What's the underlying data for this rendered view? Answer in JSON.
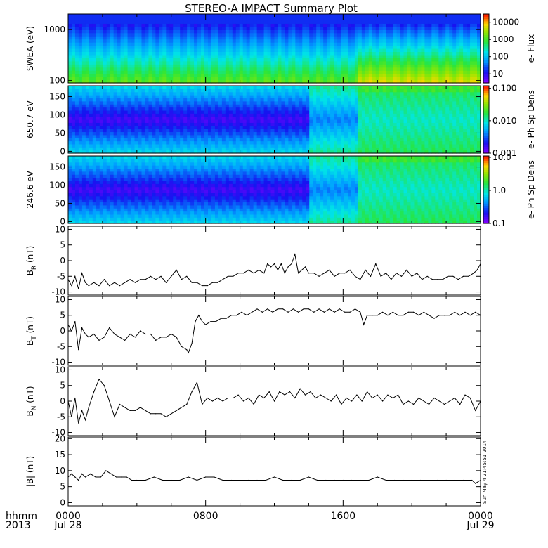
{
  "title": "STEREO-A IMPACT Summary Plot",
  "stamp": "Sun May  4 21:45:51 2014",
  "time_axis": {
    "unit_label": "hhmm",
    "year_label": "2013",
    "ticks": [
      {
        "t": 0,
        "label": "0000",
        "sub": "Jul 28"
      },
      {
        "t": 8,
        "label": "0800",
        "sub": ""
      },
      {
        "t": 16,
        "label": "1600",
        "sub": ""
      },
      {
        "t": 24,
        "label": "0000",
        "sub": "Jul 29"
      }
    ],
    "range_hours": [
      0,
      24
    ]
  },
  "chart_data": [
    {
      "id": "swea",
      "type": "heatmap",
      "ylabel": "SWEA (eV)",
      "ylim": [
        90,
        2000
      ],
      "yscale": "log",
      "yticks": [
        {
          "v": 100,
          "label": "100"
        },
        {
          "v": 1000,
          "label": "1000"
        }
      ],
      "colorbar": {
        "label": "e- Flux",
        "scale": "log",
        "range": [
          3,
          30000
        ],
        "ticks": [
          {
            "v": 10,
            "label": "10"
          },
          {
            "v": 100,
            "label": "100"
          },
          {
            "v": 1000,
            "label": "1000"
          },
          {
            "v": 10000,
            "label": "10000"
          }
        ]
      }
    },
    {
      "id": "pad650",
      "type": "heatmap",
      "ylabel": "650.7 eV",
      "ylim": [
        -5,
        180
      ],
      "yticks": [
        {
          "v": 0,
          "label": "0"
        },
        {
          "v": 50,
          "label": "50"
        },
        {
          "v": 100,
          "label": "100"
        },
        {
          "v": 150,
          "label": "150"
        }
      ],
      "colorbar": {
        "label": "e- Ph Sp Dens",
        "scale": "log",
        "range": [
          0.001,
          0.12
        ],
        "ticks": [
          {
            "v": 0.001,
            "label": "0.001"
          },
          {
            "v": 0.01,
            "label": "0.010"
          },
          {
            "v": 0.1,
            "label": "0.100"
          }
        ]
      }
    },
    {
      "id": "pad246",
      "type": "heatmap",
      "ylabel": "246.6 eV",
      "ylim": [
        -5,
        180
      ],
      "yticks": [
        {
          "v": 0,
          "label": "0"
        },
        {
          "v": 50,
          "label": "50"
        },
        {
          "v": 100,
          "label": "100"
        },
        {
          "v": 150,
          "label": "150"
        }
      ],
      "colorbar": {
        "label": "e- Ph Sp Dens",
        "scale": "log",
        "range": [
          0.1,
          11
        ],
        "ticks": [
          {
            "v": 0.1,
            "label": "0.1"
          },
          {
            "v": 1,
            "label": "1.0"
          },
          {
            "v": 10,
            "label": "10.0"
          }
        ]
      }
    },
    {
      "id": "br",
      "type": "line",
      "ylabel_main": "B",
      "ylabel_sub": "R",
      "ylabel_unit": " (nT)",
      "ylim": [
        -11,
        11
      ],
      "yticks": [
        {
          "v": -10,
          "label": "-10"
        },
        {
          "v": -5,
          "label": "-5"
        },
        {
          "v": 0,
          "label": "0"
        },
        {
          "v": 5,
          "label": "5"
        },
        {
          "v": 10,
          "label": "10"
        }
      ],
      "x": [
        0,
        0.2,
        0.4,
        0.6,
        0.8,
        1.0,
        1.2,
        1.5,
        1.8,
        2.1,
        2.4,
        2.7,
        3.0,
        3.3,
        3.6,
        3.9,
        4.2,
        4.5,
        4.8,
        5.1,
        5.4,
        5.7,
        6.0,
        6.3,
        6.6,
        6.9,
        7.2,
        7.5,
        7.8,
        8.1,
        8.4,
        8.7,
        9.0,
        9.3,
        9.6,
        9.9,
        10.2,
        10.5,
        10.8,
        11.1,
        11.4,
        11.6,
        11.8,
        12.0,
        12.2,
        12.4,
        12.6,
        12.8,
        13.0,
        13.2,
        13.4,
        13.6,
        13.8,
        14.0,
        14.3,
        14.6,
        14.9,
        15.2,
        15.5,
        15.8,
        16.1,
        16.4,
        16.7,
        17.0,
        17.3,
        17.6,
        17.9,
        18.2,
        18.5,
        18.8,
        19.1,
        19.4,
        19.7,
        20.0,
        20.3,
        20.6,
        20.9,
        21.2,
        21.5,
        21.8,
        22.1,
        22.4,
        22.7,
        23.0,
        23.3,
        23.6,
        23.8,
        24.0
      ],
      "y": [
        -6,
        -8,
        -5,
        -9,
        -4,
        -7,
        -8,
        -7,
        -8,
        -6,
        -8,
        -7,
        -8,
        -7,
        -6,
        -7,
        -6,
        -6,
        -5,
        -6,
        -5,
        -7,
        -5,
        -3,
        -6,
        -5,
        -7,
        -7,
        -8,
        -8,
        -7,
        -7,
        -6,
        -5,
        -5,
        -4,
        -4,
        -3,
        -4,
        -3,
        -4,
        -1,
        -2,
        -1,
        -3,
        -1,
        -4,
        -2,
        -1,
        2,
        -4,
        -3,
        -2,
        -4,
        -4,
        -5,
        -4,
        -3,
        -5,
        -4,
        -4,
        -3,
        -5,
        -6,
        -3,
        -5,
        -1,
        -5,
        -4,
        -6,
        -4,
        -5,
        -3,
        -5,
        -4,
        -6,
        -5,
        -6,
        -6,
        -6,
        -5,
        -5,
        -6,
        -5,
        -5,
        -4,
        -3,
        -1
      ]
    },
    {
      "id": "bt",
      "type": "line",
      "ylabel_main": "B",
      "ylabel_sub": "T",
      "ylabel_unit": " (nT)",
      "ylim": [
        -11,
        11
      ],
      "yticks": [
        {
          "v": -10,
          "label": "-10"
        },
        {
          "v": -5,
          "label": "-5"
        },
        {
          "v": 0,
          "label": "0"
        },
        {
          "v": 5,
          "label": "5"
        },
        {
          "v": 10,
          "label": "10"
        }
      ],
      "x": [
        0,
        0.2,
        0.4,
        0.6,
        0.8,
        1.0,
        1.2,
        1.5,
        1.8,
        2.1,
        2.4,
        2.7,
        3.0,
        3.3,
        3.6,
        3.9,
        4.2,
        4.5,
        4.8,
        5.1,
        5.4,
        5.7,
        6.0,
        6.3,
        6.6,
        6.9,
        7.0,
        7.2,
        7.4,
        7.6,
        7.8,
        8.0,
        8.3,
        8.6,
        8.9,
        9.2,
        9.5,
        9.8,
        10.1,
        10.4,
        10.7,
        11.0,
        11.3,
        11.6,
        11.9,
        12.2,
        12.5,
        12.8,
        13.1,
        13.4,
        13.7,
        14.0,
        14.3,
        14.6,
        14.9,
        15.2,
        15.5,
        15.8,
        16.1,
        16.4,
        16.7,
        17.0,
        17.2,
        17.4,
        17.7,
        18.0,
        18.3,
        18.6,
        18.9,
        19.2,
        19.5,
        19.8,
        20.1,
        20.4,
        20.7,
        21.0,
        21.3,
        21.6,
        21.9,
        22.2,
        22.5,
        22.8,
        23.1,
        23.4,
        23.7,
        24.0
      ],
      "y": [
        2,
        0,
        3,
        -6,
        1,
        -1,
        -2,
        -1,
        -3,
        -2,
        1,
        -1,
        -2,
        -3,
        -1,
        -2,
        0,
        -1,
        -1,
        -3,
        -2,
        -2,
        -1,
        -2,
        -5,
        -6,
        -7,
        -4,
        3,
        5,
        3,
        2,
        3,
        3,
        4,
        4,
        5,
        5,
        6,
        5,
        6,
        7,
        6,
        7,
        6,
        7,
        7,
        6,
        7,
        6,
        7,
        7,
        6,
        7,
        6,
        7,
        6,
        7,
        6,
        6,
        7,
        6,
        2,
        5,
        5,
        5,
        6,
        5,
        6,
        5,
        5,
        6,
        6,
        5,
        6,
        5,
        4,
        5,
        5,
        5,
        6,
        5,
        6,
        5,
        6,
        5
      ]
    },
    {
      "id": "bn",
      "type": "line",
      "ylabel_main": "B",
      "ylabel_sub": "N",
      "ylabel_unit": " (nT)",
      "ylim": [
        -11,
        11
      ],
      "yticks": [
        {
          "v": -10,
          "label": "-10"
        },
        {
          "v": -5,
          "label": "-5"
        },
        {
          "v": 0,
          "label": "0"
        },
        {
          "v": 5,
          "label": "5"
        },
        {
          "v": 10,
          "label": "10"
        }
      ],
      "x": [
        0,
        0.2,
        0.4,
        0.6,
        0.8,
        1.0,
        1.2,
        1.5,
        1.8,
        2.1,
        2.4,
        2.7,
        3.0,
        3.3,
        3.6,
        3.9,
        4.2,
        4.5,
        4.8,
        5.1,
        5.4,
        5.7,
        6.0,
        6.3,
        6.6,
        6.9,
        7.2,
        7.5,
        7.8,
        8.1,
        8.4,
        8.7,
        9.0,
        9.3,
        9.6,
        9.9,
        10.2,
        10.5,
        10.8,
        11.1,
        11.4,
        11.7,
        12.0,
        12.3,
        12.6,
        12.9,
        13.2,
        13.5,
        13.8,
        14.1,
        14.4,
        14.7,
        15.0,
        15.3,
        15.6,
        15.9,
        16.2,
        16.5,
        16.8,
        17.1,
        17.4,
        17.7,
        18.0,
        18.3,
        18.6,
        18.9,
        19.2,
        19.5,
        19.8,
        20.1,
        20.4,
        20.7,
        21.0,
        21.3,
        21.6,
        21.9,
        22.2,
        22.5,
        22.8,
        23.1,
        23.4,
        23.7,
        24.0
      ],
      "y": [
        0,
        -5,
        1,
        -7,
        -3,
        -6,
        -2,
        3,
        7,
        5,
        0,
        -5,
        -1,
        -2,
        -3,
        -3,
        -2,
        -3,
        -4,
        -4,
        -4,
        -5,
        -4,
        -3,
        -2,
        -1,
        3,
        6,
        -1,
        1,
        0,
        1,
        0,
        1,
        1,
        2,
        0,
        1,
        -1,
        2,
        1,
        3,
        0,
        3,
        2,
        3,
        1,
        4,
        2,
        3,
        1,
        2,
        1,
        0,
        2,
        -1,
        1,
        0,
        2,
        0,
        3,
        1,
        2,
        0,
        2,
        1,
        2,
        -1,
        0,
        -1,
        1,
        0,
        -1,
        1,
        0,
        -1,
        0,
        1,
        -1,
        2,
        1,
        -3,
        0
      ]
    },
    {
      "id": "bmag",
      "type": "line",
      "ylabel": "|B| (nT)",
      "ylim": [
        -1,
        20.5
      ],
      "yticks": [
        {
          "v": 0,
          "label": "0"
        },
        {
          "v": 5,
          "label": "5"
        },
        {
          "v": 10,
          "label": "10"
        },
        {
          "v": 15,
          "label": "15"
        },
        {
          "v": 20,
          "label": "20"
        }
      ],
      "x": [
        0,
        0.2,
        0.4,
        0.6,
        0.8,
        1.0,
        1.3,
        1.6,
        1.9,
        2.2,
        2.5,
        2.8,
        3.1,
        3.4,
        3.7,
        4.0,
        4.5,
        5.0,
        5.5,
        6.0,
        6.5,
        7.0,
        7.5,
        8.0,
        8.5,
        9.0,
        9.5,
        10.0,
        10.5,
        11.0,
        11.5,
        12.0,
        12.5,
        13.0,
        13.5,
        14.0,
        14.5,
        15.0,
        15.5,
        16.0,
        16.5,
        17.0,
        17.5,
        18.0,
        18.5,
        19.0,
        19.5,
        20.0,
        20.5,
        21.0,
        21.5,
        22.0,
        22.5,
        23.0,
        23.5,
        23.7,
        24.0
      ],
      "y": [
        8,
        9,
        8,
        7,
        9,
        8,
        9,
        8,
        8,
        10,
        9,
        8,
        8,
        8,
        7,
        7,
        7,
        8,
        7,
        7,
        7,
        8,
        7,
        8,
        8,
        7,
        7,
        7,
        7,
        7,
        7,
        8,
        7,
        7,
        7,
        8,
        7,
        7,
        7,
        7,
        7,
        7,
        7,
        8,
        7,
        7,
        7,
        7,
        7,
        7,
        7,
        7,
        7,
        7,
        7,
        6,
        7
      ]
    }
  ]
}
